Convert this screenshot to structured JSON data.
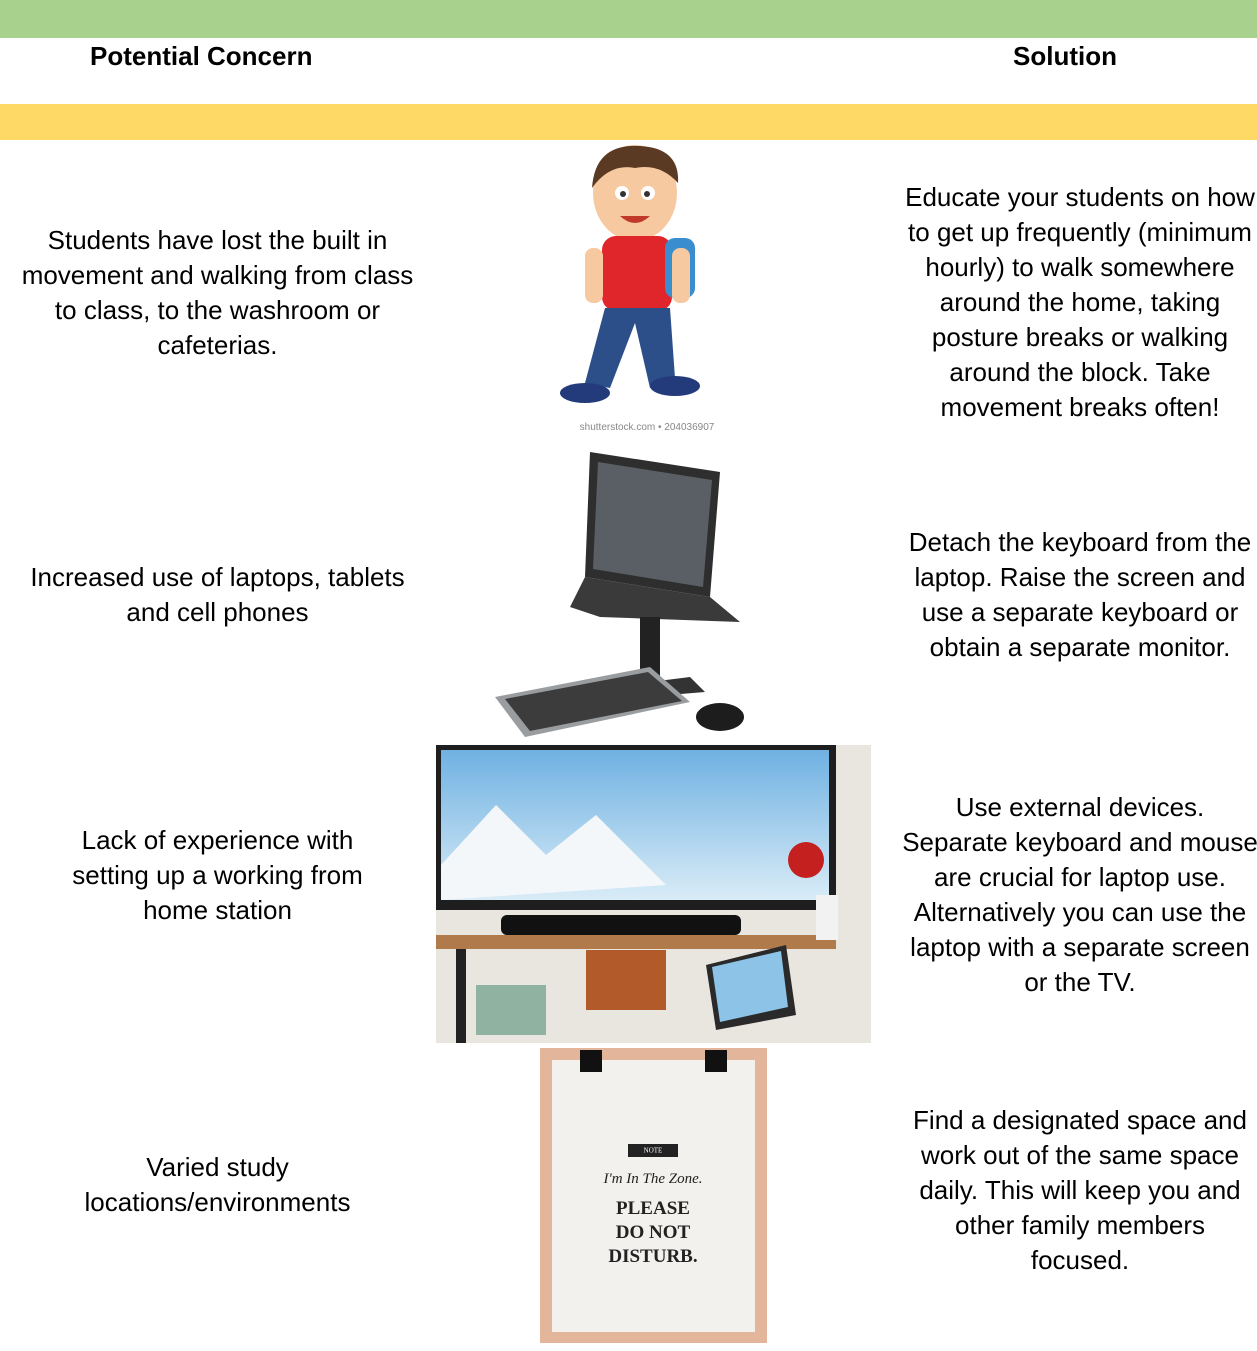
{
  "header": {
    "columns": [
      "Potential Concern",
      "Solution"
    ]
  },
  "rows": [
    {
      "concern": "Students have lost the built in movement and walking from class to class, to the washroom or cafeterias.",
      "solution": "Educate your students on how to get up frequently (minimum hourly) to walk somewhere around the home, taking posture breaks or walking around the block. Take movement breaks often!"
    },
    {
      "concern": "Increased use of laptops, tablets and cell phones",
      "solution": "Detach the keyboard from the laptop. Raise the screen and use a separate keyboard or obtain a separate monitor."
    },
    {
      "concern": "Lack of experience with setting up a working from home station",
      "solution": "Use external devices. Separate keyboard and mouse are crucial for laptop use. Alternatively you can use the laptop with a separate screen or the TV."
    },
    {
      "concern": "Varied study locations/environments",
      "solution": "Find a designated space and work out of the same space daily. This will keep you and other family members focused."
    }
  ],
  "images": {
    "watermark": "shutterstock.com • 204036907",
    "sign": {
      "note": "NOTE",
      "tagline": "I'm In The Zone.",
      "message": [
        "PLEASE",
        "DO NOT",
        "DISTURB."
      ]
    }
  }
}
